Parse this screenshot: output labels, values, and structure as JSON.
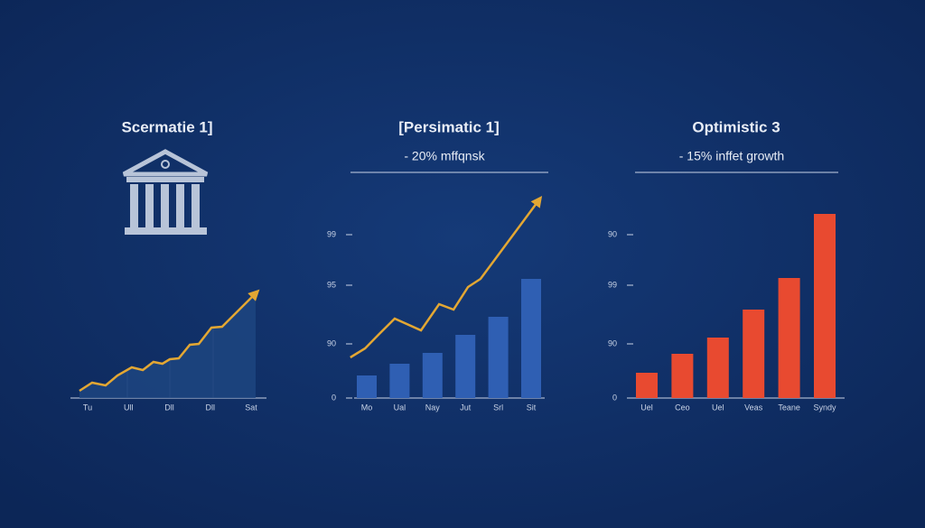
{
  "chart_data": [
    {
      "type": "area",
      "title": "Scermatie 1]",
      "categories": [
        "Tu",
        "Ull",
        "Dll",
        "Dll",
        "Sat"
      ],
      "series": [
        {
          "color": "#e3a733",
          "fill": "#1d4580",
          "x": [
            -0.2,
            0.11,
            0.44,
            0.73,
            1.08,
            1.35,
            1.61,
            1.83,
            2.01,
            2.23,
            2.5,
            2.72,
            3.03,
            3.29,
            4.11
          ],
          "values": [
            8,
            17,
            14,
            25,
            34,
            31,
            40,
            38,
            43,
            44,
            59,
            60,
            78,
            79,
            116
          ]
        }
      ],
      "ylim": [
        0,
        120
      ]
    },
    {
      "type": "bar",
      "title": "[Persimatic 1]",
      "subtitle": "- 20% mffqnsk",
      "categories": [
        "Mo",
        "Ual",
        "Nay",
        "Jut",
        "Srl",
        "Sit"
      ],
      "series": [
        {
          "type": "bar",
          "color": "#2f5fb3",
          "values": [
            25,
            38,
            50,
            70,
            90,
            132
          ]
        },
        {
          "type": "line",
          "color": "#e3a733",
          "x": [
            -0.5,
            -0.05,
            0.38,
            0.85,
            1.65,
            2.2,
            2.64,
            3.08,
            3.46,
            5.23
          ],
          "values": [
            45,
            55,
            71,
            88,
            75,
            104,
            98,
            123,
            132,
            219
          ]
        }
      ],
      "ylim": [
        0,
        226
      ],
      "yticks": [
        0,
        {
          "value": 60,
          "label": "90"
        },
        {
          "value": 125,
          "label": "95"
        },
        {
          "value": 181,
          "label": "99"
        }
      ]
    },
    {
      "type": "bar",
      "title": "Optimistic 3",
      "subtitle": "- 15% inffet growth",
      "categories": [
        "Uel",
        "Ceo",
        "Uel",
        "Veas",
        "Teane",
        "Syndy"
      ],
      "series": [
        {
          "type": "bar",
          "color": "#e84a30",
          "values": [
            28,
            49,
            67,
            98,
            133,
            204
          ]
        }
      ],
      "ylim": [
        0,
        210
      ],
      "yticks": [
        0,
        {
          "value": 60,
          "label": "90"
        },
        {
          "value": 125,
          "label": "99"
        },
        {
          "value": 181,
          "label": "90"
        }
      ]
    }
  ]
}
